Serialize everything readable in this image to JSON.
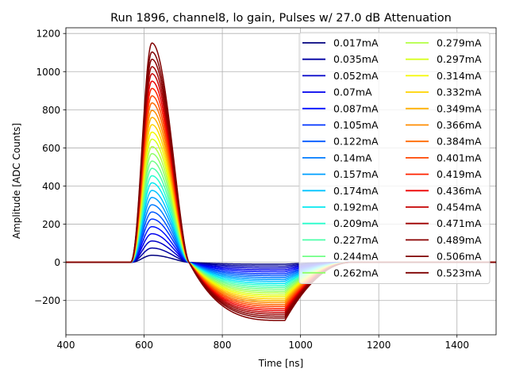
{
  "chart_data": {
    "type": "line",
    "title": "Run 1896, channel8, lo gain, Pulses w/ 27.0 dB Attenuation",
    "xlabel": "Time [ns]",
    "ylabel": "Amplitude [ADC Counts]",
    "xlim": [
      400,
      1500
    ],
    "ylim": [
      -380,
      1230
    ],
    "xticks": [
      400,
      600,
      800,
      1000,
      1200,
      1400
    ],
    "yticks": [
      -200,
      0,
      200,
      400,
      600,
      800,
      1000,
      1200
    ],
    "xtick_labels": [
      "400",
      "600",
      "800",
      "1000",
      "1200",
      "1400"
    ],
    "ytick_labels": [
      "−200",
      "0",
      "200",
      "400",
      "600",
      "800",
      "1000",
      "1200"
    ],
    "grid": true,
    "legend_position": "top-right",
    "legend_columns": 2,
    "colormap": "jet",
    "pulse_shape": {
      "baseline": 0,
      "rise_start_ns": 565,
      "peak_time_ns": 620,
      "zero_crossing_ns": 715,
      "undershoot_min_ns": 960,
      "recovery_end_ns": 1130,
      "undershoot_to_peak_ratio": -0.265
    },
    "series": [
      {
        "name": "0.017mA",
        "peak": 37,
        "color": "#00007f"
      },
      {
        "name": "0.035mA",
        "peak": 75,
        "color": "#0000a3"
      },
      {
        "name": "0.052mA",
        "peak": 112,
        "color": "#0000c8"
      },
      {
        "name": "0.07mA",
        "peak": 150,
        "color": "#0000ed"
      },
      {
        "name": "0.087mA",
        "peak": 187,
        "color": "#0010ff"
      },
      {
        "name": "0.105mA",
        "peak": 227,
        "color": "#0034ff"
      },
      {
        "name": "0.122mA",
        "peak": 264,
        "color": "#0058ff"
      },
      {
        "name": "0.14mA",
        "peak": 302,
        "color": "#007cff"
      },
      {
        "name": "0.157mA",
        "peak": 340,
        "color": "#00a0ff"
      },
      {
        "name": "0.174mA",
        "peak": 377,
        "color": "#00c4ff"
      },
      {
        "name": "0.192mA",
        "peak": 417,
        "color": "#06e8f1"
      },
      {
        "name": "0.209mA",
        "peak": 454,
        "color": "#29ffce"
      },
      {
        "name": "0.227mA",
        "peak": 493,
        "color": "#4cffaa"
      },
      {
        "name": "0.244mA",
        "peak": 531,
        "color": "#70ff86"
      },
      {
        "name": "0.262mA",
        "peak": 570,
        "color": "#8fff67"
      },
      {
        "name": "0.279mA",
        "peak": 607,
        "color": "#b3ff43"
      },
      {
        "name": "0.297mA",
        "peak": 646,
        "color": "#d7ff1f"
      },
      {
        "name": "0.314mA",
        "peak": 683,
        "color": "#f4f802"
      },
      {
        "name": "0.332mA",
        "peak": 722,
        "color": "#ffd400"
      },
      {
        "name": "0.349mA",
        "peak": 760,
        "color": "#ffb100"
      },
      {
        "name": "0.366mA",
        "peak": 797,
        "color": "#ff8d00"
      },
      {
        "name": "0.384mA",
        "peak": 836,
        "color": "#ff6a00"
      },
      {
        "name": "0.401mA",
        "peak": 873,
        "color": "#ff4600"
      },
      {
        "name": "0.419mA",
        "peak": 912,
        "color": "#ff2300"
      },
      {
        "name": "0.436mA",
        "peak": 950,
        "color": "#ed0000"
      },
      {
        "name": "0.454mA",
        "peak": 989,
        "color": "#c40000"
      },
      {
        "name": "0.471mA",
        "peak": 1026,
        "color": "#a00000"
      },
      {
        "name": "0.489mA",
        "peak": 1065,
        "color": "#8a0000"
      },
      {
        "name": "0.506mA",
        "peak": 1103,
        "color": "#7f0000"
      },
      {
        "name": "0.523mA",
        "peak": 1150,
        "color": "#7f0000"
      }
    ]
  }
}
